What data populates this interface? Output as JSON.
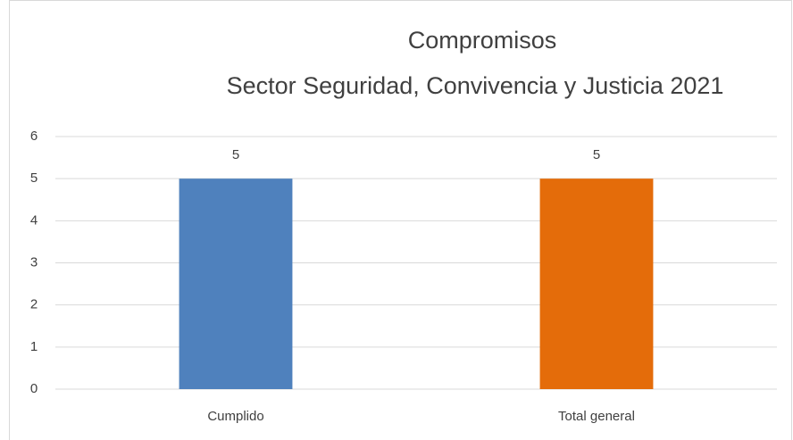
{
  "chart_data": {
    "type": "bar",
    "title": "Compromisos",
    "subtitle": "Sector Seguridad, Convivencia y Justicia 2021",
    "categories": [
      "Cumplido",
      "Total general"
    ],
    "values": [
      5,
      5
    ],
    "colors": [
      "#4f81bd",
      "#e46c0a"
    ],
    "ylim": [
      0,
      6
    ],
    "yticks": [
      0,
      1,
      2,
      3,
      4,
      5,
      6
    ],
    "grid": true
  }
}
